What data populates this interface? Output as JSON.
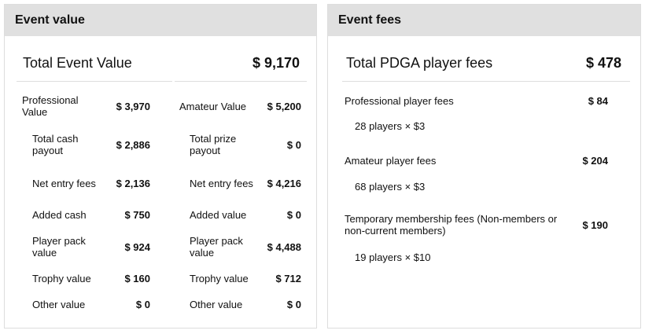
{
  "event_value": {
    "header": "Event value",
    "total_label": "Total Event Value",
    "total_value": "$ 9,170",
    "professional": {
      "label": "Professional Value",
      "value": "$ 3,970",
      "items": [
        {
          "label": "Total cash payout",
          "value": "$ 2,886"
        },
        {
          "label": "Net entry fees",
          "value": "$ 2,136"
        },
        {
          "label": "Added cash",
          "value": "$ 750"
        },
        {
          "label": "Player pack value",
          "value": "$ 924"
        },
        {
          "label": "Trophy value",
          "value": "$ 160"
        },
        {
          "label": "Other value",
          "value": "$ 0"
        }
      ]
    },
    "amateur": {
      "label": "Amateur Value",
      "value": "$ 5,200",
      "items": [
        {
          "label": "Total prize payout",
          "value": "$ 0"
        },
        {
          "label": "Net entry fees",
          "value": "$ 4,216"
        },
        {
          "label": "Added value",
          "value": "$ 0"
        },
        {
          "label": "Player pack value",
          "value": "$ 4,488"
        },
        {
          "label": "Trophy value",
          "value": "$ 712"
        },
        {
          "label": "Other value",
          "value": "$ 0"
        }
      ]
    }
  },
  "event_fees": {
    "header": "Event fees",
    "total_label": "Total PDGA player fees",
    "total_value": "$ 478",
    "items": [
      {
        "label": "Professional player fees",
        "value": "$ 84",
        "detail": "28 players × $3"
      },
      {
        "label": "Amateur player fees",
        "value": "$ 204",
        "detail": "68 players × $3"
      },
      {
        "label": "Temporary membership fees (Non-members or non-current members)",
        "value": "$ 190",
        "detail": "19 players × $10"
      }
    ]
  }
}
